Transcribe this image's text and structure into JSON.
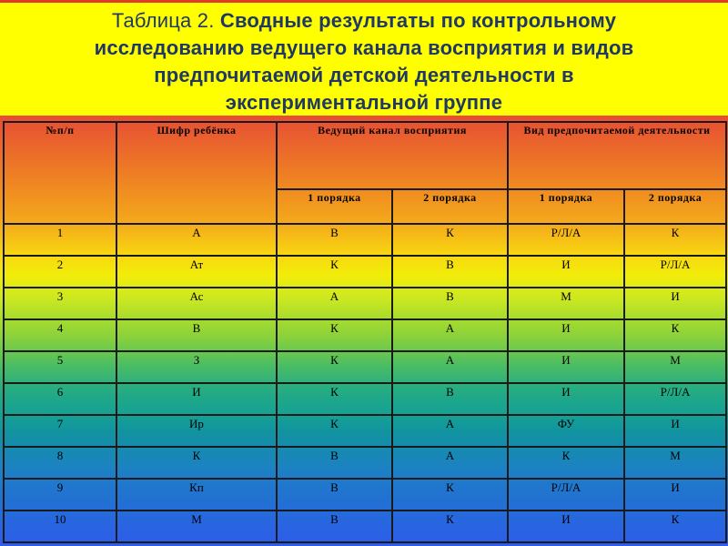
{
  "title": {
    "prefix": "Таблица 2.",
    "line1": "Сводные результаты по контрольному",
    "line2": "исследованию ведущего канала восприятия и видов",
    "line3": "предпочитаемой детской деятельности в",
    "line4": "экспериментальной группе"
  },
  "colors": {
    "title_bg": "#FFFF00",
    "title_text": "#1F3864",
    "cell_green_fill": "#6CA84E",
    "cell_white_fill": "#FFFFFF",
    "table_border": "#1A1A1A",
    "background_gradient_top": "#E03A2B",
    "background_gradient_bottom": "#2E5DEA"
  },
  "table": {
    "header": {
      "col_num": "№п/п",
      "col_cipher": "Шифр ребёнка",
      "group_channel": "Ведущий канал восприятия",
      "group_activity": "Вид предпочитаемой деятельности",
      "sub": [
        "1 порядка",
        "2 порядка",
        "1 порядка",
        "2 порядка"
      ]
    },
    "rows": [
      {
        "num": "1",
        "cipher": "А",
        "cells": [
          {
            "t": "В",
            "f": "green"
          },
          {
            "t": "К",
            "f": "green"
          },
          {
            "t": "Р/Л/А",
            "f": "white"
          },
          {
            "t": "К",
            "f": "green"
          }
        ]
      },
      {
        "num": "2",
        "cipher": "Ат",
        "cells": [
          {
            "t": "К",
            "f": "green"
          },
          {
            "t": "В",
            "f": "green"
          },
          {
            "t": "И",
            "f": "green"
          },
          {
            "t": "Р/Л/А",
            "f": "green"
          }
        ]
      },
      {
        "num": "3",
        "cipher": "Ас",
        "cells": [
          {
            "t": "А",
            "f": "none"
          },
          {
            "t": "В",
            "f": "green"
          },
          {
            "t": "М",
            "f": "none"
          },
          {
            "t": "И",
            "f": "none"
          }
        ]
      },
      {
        "num": "4",
        "cipher": "В",
        "cells": [
          {
            "t": "К",
            "f": "none"
          },
          {
            "t": "А",
            "f": "green"
          },
          {
            "t": "И",
            "f": "none"
          },
          {
            "t": "К",
            "f": "none"
          }
        ]
      },
      {
        "num": "5",
        "cipher": "З",
        "cells": [
          {
            "t": "К",
            "f": "green"
          },
          {
            "t": "А",
            "f": "white"
          },
          {
            "t": "И",
            "f": "green"
          },
          {
            "t": "М",
            "f": "white"
          }
        ]
      },
      {
        "num": "6",
        "cipher": "И",
        "cells": [
          {
            "t": "К",
            "f": "none"
          },
          {
            "t": "В",
            "f": "none"
          },
          {
            "t": "И",
            "f": "none"
          },
          {
            "t": "Р/Л/А",
            "f": "none"
          }
        ]
      },
      {
        "num": "7",
        "cipher": "Ир",
        "cells": [
          {
            "t": "К",
            "f": "none"
          },
          {
            "t": "А",
            "f": "green"
          },
          {
            "t": "ФУ",
            "f": "none"
          },
          {
            "t": "И",
            "f": "green"
          }
        ]
      },
      {
        "num": "8",
        "cipher": "К",
        "cells": [
          {
            "t": "В",
            "f": "none"
          },
          {
            "t": "А",
            "f": "green"
          },
          {
            "t": "К",
            "f": "green"
          },
          {
            "t": "М",
            "f": "green"
          }
        ]
      },
      {
        "num": "9",
        "cipher": "Кп",
        "cells": [
          {
            "t": "В",
            "f": "green"
          },
          {
            "t": "К",
            "f": "white"
          },
          {
            "t": "Р/Л/А",
            "f": "white"
          },
          {
            "t": "И",
            "f": "green"
          }
        ]
      },
      {
        "num": "10",
        "cipher": "М",
        "cells": [
          {
            "t": "В",
            "f": "none"
          },
          {
            "t": "К",
            "f": "none"
          },
          {
            "t": "И",
            "f": "none"
          },
          {
            "t": "К",
            "f": "green"
          }
        ]
      }
    ]
  }
}
